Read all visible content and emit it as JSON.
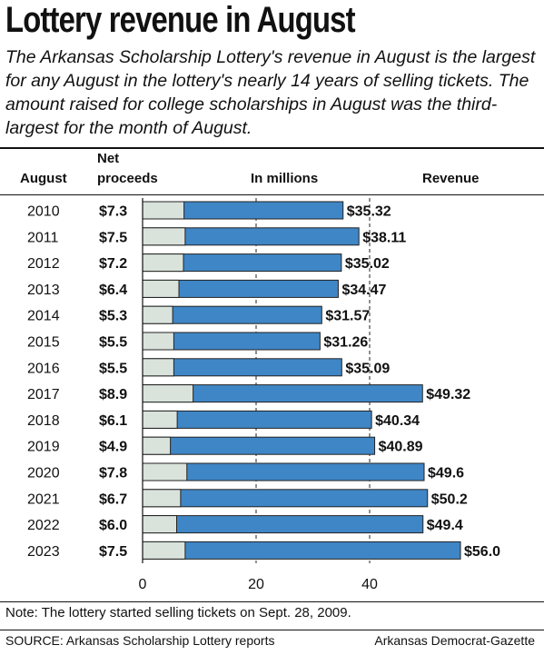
{
  "header": {
    "title": "Lottery revenue in August",
    "subtitle": "The Arkansas Scholarship Lottery's revenue in August is the largest for any August in the lottery's nearly 14 years of selling tickets. The amount raised for college scholarships in August was the third-largest for the month of August."
  },
  "columns": {
    "august": "August",
    "net_line1": "Net",
    "net_line2": "proceeds",
    "millions": "In millions",
    "revenue": "Revenue"
  },
  "chart_data": {
    "type": "bar",
    "orientation": "horizontal",
    "categories": [
      "2010",
      "2011",
      "2012",
      "2013",
      "2014",
      "2015",
      "2016",
      "2017",
      "2018",
      "2019",
      "2020",
      "2021",
      "2022",
      "2023"
    ],
    "series": [
      {
        "name": "Net proceeds",
        "values": [
          7.3,
          7.5,
          7.2,
          6.4,
          5.3,
          5.5,
          5.5,
          8.9,
          6.1,
          4.9,
          7.8,
          6.7,
          6.0,
          7.5
        ],
        "labels": [
          "$7.3",
          "$7.5",
          "$7.2",
          "$6.4",
          "$5.3",
          "$5.5",
          "$5.5",
          "$8.9",
          "$6.1",
          "$4.9",
          "$7.8",
          "$6.7",
          "$6.0",
          "$7.5"
        ],
        "color": "#d9e3dc"
      },
      {
        "name": "Revenue",
        "values": [
          35.32,
          38.11,
          35.02,
          34.47,
          31.57,
          31.26,
          35.09,
          49.32,
          40.34,
          40.89,
          49.6,
          50.2,
          49.4,
          56.0
        ],
        "labels": [
          "$35.32",
          "$38.11",
          "$35.02",
          "$34.47",
          "$31.57",
          "$31.26",
          "$35.09",
          "$49.32",
          "$40.34",
          "$40.89",
          "$49.6",
          "$50.2",
          "$49.4",
          "$56.0"
        ],
        "color": "#3f86c6"
      }
    ],
    "xticks": [
      0,
      20,
      40
    ],
    "xtick_labels": [
      "0",
      "20",
      "40"
    ],
    "xlim": [
      0,
      60
    ],
    "grid": true,
    "legend": "none"
  },
  "footer": {
    "note": "Note: The lottery started selling tickets on Sept. 28, 2009.",
    "source": "SOURCE: Arkansas Scholarship Lottery reports",
    "credit": "Arkansas Democrat-Gazette"
  }
}
